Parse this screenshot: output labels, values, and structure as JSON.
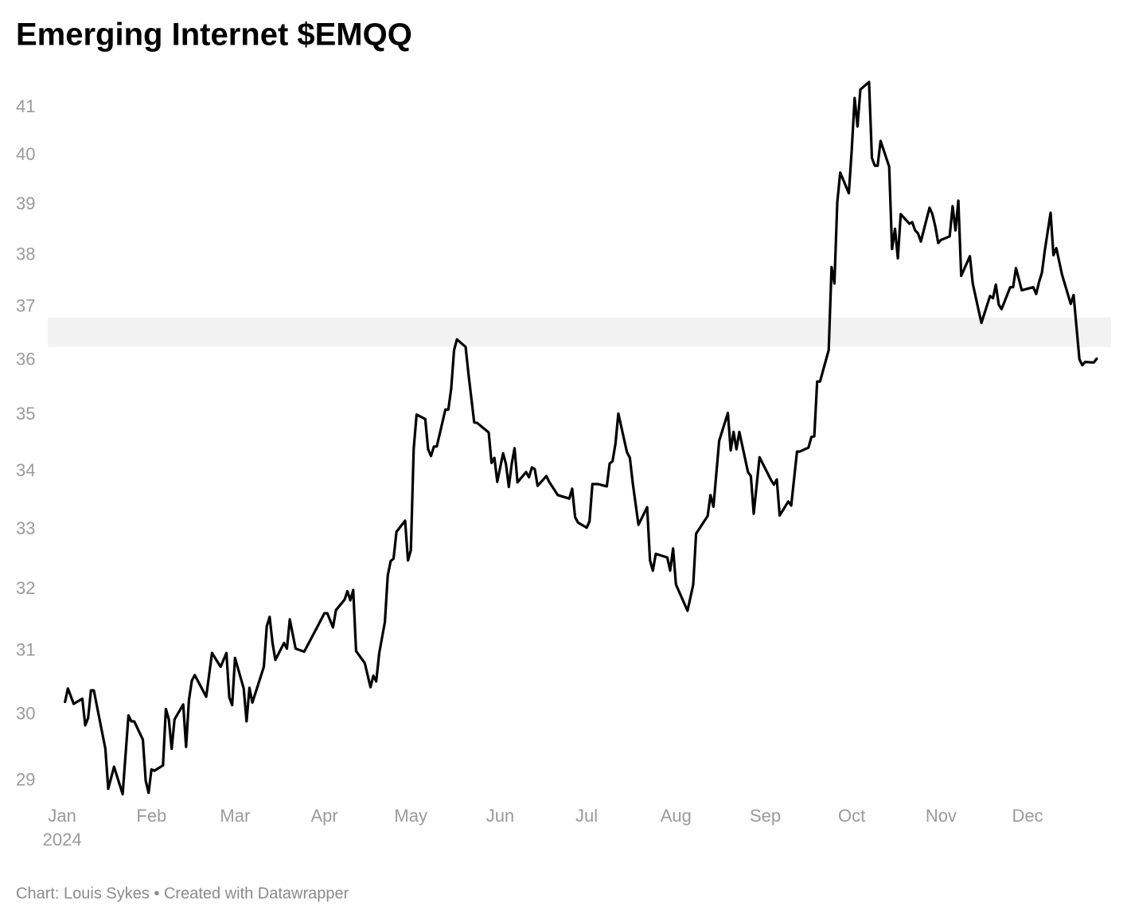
{
  "chart_data": {
    "type": "line",
    "title": "Emerging Internet $EMQQ",
    "source": "Chart: Louis Sykes • Created with Datawrapper",
    "x_axis_sublabel": "2024",
    "log_scale": true,
    "grid": false,
    "color": "#000000",
    "highlight_range": [
      36.25,
      36.8
    ],
    "highlight_color": "#f2f2f2",
    "xlim": [
      -5,
      364
    ],
    "ylim": [
      28.7,
      41.6
    ],
    "yticks": [
      29,
      30,
      31,
      32,
      33,
      34,
      35,
      36,
      37,
      38,
      39,
      40,
      41
    ],
    "xticks": [
      {
        "value": 0,
        "label": "Jan"
      },
      {
        "value": 31,
        "label": "Feb"
      },
      {
        "value": 60,
        "label": "Mar"
      },
      {
        "value": 91,
        "label": "Apr"
      },
      {
        "value": 121,
        "label": "May"
      },
      {
        "value": 152,
        "label": "Jun"
      },
      {
        "value": 182,
        "label": "Jul"
      },
      {
        "value": 213,
        "label": "Aug"
      },
      {
        "value": 244,
        "label": "Sep"
      },
      {
        "value": 274,
        "label": "Oct"
      },
      {
        "value": 305,
        "label": "Nov"
      },
      {
        "value": 335,
        "label": "Dec"
      }
    ],
    "x": [
      1,
      2,
      4,
      7,
      8,
      9,
      10,
      11,
      15,
      16,
      18,
      21,
      23,
      24,
      25,
      28,
      29,
      30,
      31,
      32,
      35,
      36,
      37,
      38,
      39,
      42,
      43,
      44,
      45,
      46,
      50,
      52,
      55,
      57,
      58,
      59,
      60,
      63,
      64,
      65,
      66,
      70,
      71,
      72,
      73,
      74,
      77,
      78,
      79,
      81,
      84,
      88,
      91,
      92,
      94,
      95,
      98,
      99,
      100,
      101,
      102,
      105,
      107,
      108,
      109,
      110,
      112,
      113,
      114,
      115,
      116,
      119,
      120,
      121,
      122,
      123,
      126,
      127,
      128,
      129,
      130,
      133,
      134,
      135,
      136,
      137,
      140,
      141,
      143,
      144,
      148,
      149,
      150,
      151,
      153,
      154,
      155,
      156,
      157,
      158,
      161,
      162,
      163,
      164,
      165,
      168,
      169,
      172,
      176,
      177,
      178,
      179,
      182,
      183,
      184,
      186,
      189,
      190,
      191,
      192,
      193,
      196,
      197,
      198,
      200,
      203,
      204,
      205,
      206,
      210,
      211,
      212,
      213,
      217,
      219,
      220,
      224,
      225,
      226,
      228,
      231,
      232,
      233,
      234,
      235,
      238,
      239,
      240,
      242,
      246,
      247,
      248,
      249,
      252,
      253,
      255,
      256,
      259,
      260,
      261,
      262,
      263,
      266,
      267,
      268,
      269,
      270,
      273,
      274,
      275,
      276,
      277,
      280,
      281,
      282,
      283,
      284,
      287,
      288,
      289,
      290,
      291,
      294,
      295,
      296,
      297,
      298,
      301,
      302,
      303,
      304,
      305,
      308,
      309,
      310,
      311,
      312,
      315,
      316,
      318,
      319,
      322,
      323,
      324,
      325,
      326,
      329,
      330,
      331,
      333,
      337,
      338,
      339,
      340,
      341,
      343,
      344,
      345,
      347,
      350,
      351,
      353,
      354,
      355,
      358,
      359
    ],
    "values": [
      30.2,
      30.41,
      30.17,
      30.25,
      29.84,
      29.95,
      30.38,
      30.38,
      29.48,
      28.88,
      29.21,
      28.8,
      29.99,
      29.9,
      29.9,
      29.62,
      29.0,
      28.82,
      29.17,
      29.15,
      29.23,
      30.09,
      29.93,
      29.48,
      29.93,
      30.16,
      29.51,
      30.23,
      30.53,
      30.62,
      30.28,
      30.97,
      30.75,
      30.97,
      30.27,
      30.15,
      30.89,
      30.41,
      29.9,
      30.42,
      30.19,
      30.75,
      31.4,
      31.55,
      31.13,
      30.86,
      31.13,
      31.04,
      31.51,
      31.04,
      30.99,
      31.34,
      31.61,
      31.61,
      31.38,
      31.66,
      31.83,
      31.97,
      31.82,
      31.99,
      31.0,
      30.81,
      30.43,
      30.61,
      30.52,
      30.96,
      31.47,
      32.23,
      32.47,
      32.51,
      32.96,
      33.15,
      32.48,
      32.65,
      34.4,
      35.01,
      34.93,
      34.39,
      34.27,
      34.44,
      34.44,
      35.1,
      35.1,
      35.48,
      36.19,
      36.39,
      36.25,
      35.75,
      34.87,
      34.86,
      34.69,
      34.15,
      34.24,
      33.82,
      34.32,
      34.13,
      33.73,
      34.13,
      34.41,
      33.81,
      33.99,
      33.9,
      34.07,
      34.04,
      33.75,
      33.92,
      33.82,
      33.59,
      33.53,
      33.7,
      33.21,
      33.12,
      33.03,
      33.14,
      33.78,
      33.78,
      33.74,
      34.14,
      34.18,
      34.49,
      35.03,
      34.34,
      34.24,
      33.8,
      33.08,
      33.38,
      32.48,
      32.31,
      32.59,
      32.53,
      32.31,
      32.68,
      32.08,
      31.65,
      32.08,
      32.93,
      33.23,
      33.59,
      33.39,
      34.54,
      35.04,
      34.37,
      34.7,
      34.39,
      34.7,
      33.99,
      33.92,
      33.27,
      34.25,
      33.85,
      33.77,
      33.86,
      33.24,
      33.48,
      33.41,
      34.35,
      34.35,
      34.42,
      34.61,
      34.62,
      35.61,
      35.61,
      36.19,
      37.77,
      37.45,
      39.05,
      39.65,
      39.23,
      40.1,
      41.2,
      40.6,
      41.38,
      41.54,
      39.95,
      39.79,
      39.79,
      40.3,
      39.77,
      38.12,
      38.52,
      37.94,
      38.81,
      38.62,
      38.65,
      38.49,
      38.43,
      38.27,
      38.94,
      38.81,
      38.57,
      38.24,
      38.3,
      38.37,
      38.97,
      38.49,
      39.08,
      37.6,
      37.98,
      37.45,
      36.94,
      36.7,
      37.21,
      37.17,
      37.43,
      37.05,
      36.96,
      37.38,
      37.38,
      37.75,
      37.32,
      37.38,
      37.25,
      37.48,
      37.66,
      38.09,
      38.84,
      38.0,
      38.14,
      37.62,
      37.06,
      37.23,
      36.02,
      35.91,
      35.97,
      35.96,
      36.03
    ]
  }
}
